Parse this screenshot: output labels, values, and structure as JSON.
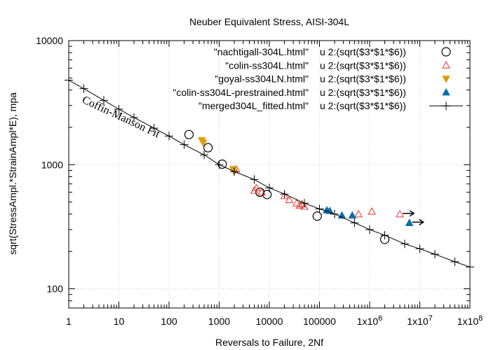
{
  "chart_data": {
    "type": "scatter",
    "title": "Neuber Equivalent Stress, AISI-304L",
    "xlabel": "Reversals to Failure, 2Nf",
    "ylabel": "sqrt(StressAmpl.*StrainAmpl*E), mpa",
    "xscale": "log",
    "yscale": "log",
    "xlim": [
      1,
      100000000
    ],
    "ylim": [
      70,
      10000
    ],
    "xticks": [
      {
        "v": 1,
        "label": "1"
      },
      {
        "v": 10,
        "label": "10"
      },
      {
        "v": 100,
        "label": "100"
      },
      {
        "v": 1000,
        "label": "1000"
      },
      {
        "v": 10000,
        "label": "10000"
      },
      {
        "v": 100000,
        "label": "100000"
      },
      {
        "v": 1000000,
        "label": "1x10",
        "sup": "6"
      },
      {
        "v": 10000000,
        "label": "1x10",
        "sup": "7"
      },
      {
        "v": 100000000,
        "label": "1x10",
        "sup": "8"
      }
    ],
    "yticks": [
      {
        "v": 100,
        "label": "100"
      },
      {
        "v": 1000,
        "label": "1000"
      },
      {
        "v": 10000,
        "label": "10000"
      }
    ],
    "grid": true,
    "legend_position": "top-right",
    "annotation": "Coffin-Manson Fit",
    "series": [
      {
        "name": "\"nachtigall-304L.html\"",
        "using": "u 2:(sqrt($3*$1*$6))",
        "marker": "open-circle",
        "color": "#000000",
        "points": [
          [
            250,
            1750
          ],
          [
            600,
            1370
          ],
          [
            1150,
            1010
          ],
          [
            6500,
            600
          ],
          [
            9000,
            575
          ],
          [
            90000,
            385
          ],
          [
            2000000,
            250
          ]
        ]
      },
      {
        "name": "\"colin-ss304L.html\"",
        "using": "u 2:(sqrt($3*$1*$6))",
        "marker": "open-triangle",
        "color": "#e8372a",
        "points": [
          [
            2200,
            920
          ],
          [
            5000,
            620
          ],
          [
            5500,
            650
          ],
          [
            7000,
            600
          ],
          [
            20000,
            560
          ],
          [
            25000,
            520
          ],
          [
            35000,
            490
          ],
          [
            40000,
            470
          ],
          [
            45000,
            480
          ],
          [
            50000,
            460
          ],
          [
            600000,
            400
          ],
          [
            1100000,
            420
          ],
          [
            4000000,
            400
          ]
        ]
      },
      {
        "name": "\"goyal-ss304LN.html\"",
        "using": "u 2:(sqrt($3*$1*$6))",
        "marker": "filled-triangle-down",
        "color": "#e39b0e",
        "points": [
          [
            450,
            1570
          ],
          [
            480,
            1500
          ],
          [
            1900,
            920
          ],
          [
            2000,
            880
          ]
        ]
      },
      {
        "name": "\"colin-ss304L-prestrained.html\"",
        "using": "u 2:(sqrt($3*$1*$6))",
        "marker": "filled-triangle",
        "color": "#0a6ea8",
        "points": [
          [
            140000,
            430
          ],
          [
            160000,
            425
          ],
          [
            280000,
            390
          ],
          [
            450000,
            390
          ],
          [
            6200000,
            340
          ]
        ]
      },
      {
        "name": "\"merged304L_fitted.html\"",
        "using": "u 2:(sqrt($3*$1*$6))",
        "marker": "plus-line",
        "color": "#000000",
        "points": [
          [
            1,
            4800
          ],
          [
            2,
            4100
          ],
          [
            5,
            3300
          ],
          [
            10,
            2800
          ],
          [
            20,
            2400
          ],
          [
            50,
            1970
          ],
          [
            100,
            1700
          ],
          [
            200,
            1450
          ],
          [
            500,
            1200
          ],
          [
            1000,
            1000
          ],
          [
            2000,
            880
          ],
          [
            5000,
            760
          ],
          [
            10000,
            650
          ],
          [
            20000,
            580
          ],
          [
            50000,
            490
          ],
          [
            100000,
            440
          ],
          [
            200000,
            400
          ],
          [
            500000,
            340
          ],
          [
            1000000,
            300
          ],
          [
            2000000,
            270
          ],
          [
            5000000,
            230
          ],
          [
            10000000,
            210
          ],
          [
            20000000,
            190
          ],
          [
            50000000,
            165
          ],
          [
            100000000,
            150
          ]
        ]
      }
    ],
    "runouts": [
      [
        4000000,
        400
      ],
      [
        6200000,
        340
      ]
    ]
  }
}
